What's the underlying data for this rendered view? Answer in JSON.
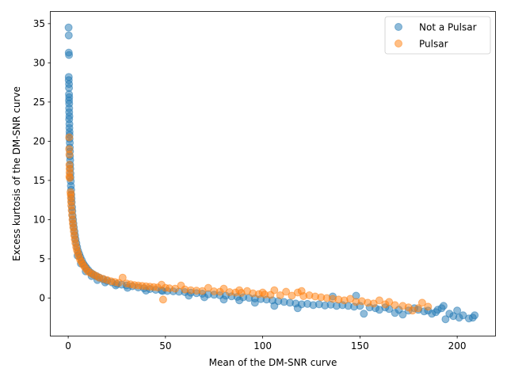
{
  "chart_data": {
    "type": "scatter",
    "title": "",
    "xlabel": "Mean of the DM-SNR curve",
    "ylabel": "Excess kurtosis of the DM-SNR curve",
    "xlim": [
      -9,
      219.5
    ],
    "ylim": [
      -4.8,
      36.5
    ],
    "xticks": [
      0,
      50,
      100,
      150,
      200
    ],
    "yticks": [
      0,
      5,
      10,
      15,
      20,
      25,
      30,
      35
    ],
    "grid": false,
    "legend_position": "top-right",
    "series": [
      {
        "name": "Not a Pulsar",
        "color": "#1f77b4",
        "alpha": 0.5,
        "points": [
          [
            0.2,
            34.5
          ],
          [
            0.3,
            33.5
          ],
          [
            0.3,
            31.3
          ],
          [
            0.4,
            31.0
          ],
          [
            0.3,
            28.2
          ],
          [
            0.3,
            27.8
          ],
          [
            0.4,
            27.3
          ],
          [
            0.4,
            26.8
          ],
          [
            0.4,
            26.0
          ],
          [
            0.5,
            25.6
          ],
          [
            0.4,
            25.2
          ],
          [
            0.5,
            24.8
          ],
          [
            0.5,
            24.2
          ],
          [
            0.5,
            23.7
          ],
          [
            0.6,
            23.2
          ],
          [
            0.5,
            22.8
          ],
          [
            0.6,
            22.2
          ],
          [
            0.6,
            21.7
          ],
          [
            0.7,
            21.2
          ],
          [
            0.7,
            20.8
          ],
          [
            0.7,
            20.3
          ],
          [
            0.8,
            19.8
          ],
          [
            0.8,
            19.2
          ],
          [
            0.9,
            18.7
          ],
          [
            0.9,
            18.1
          ],
          [
            1.0,
            17.6
          ],
          [
            1.0,
            17.0
          ],
          [
            1.1,
            16.5
          ],
          [
            1.2,
            15.9
          ],
          [
            1.2,
            15.4
          ],
          [
            1.3,
            14.9
          ],
          [
            1.4,
            14.3
          ],
          [
            1.5,
            13.8
          ],
          [
            1.6,
            13.2
          ],
          [
            1.7,
            12.7
          ],
          [
            1.8,
            12.2
          ],
          [
            2.0,
            11.6
          ],
          [
            2.1,
            11.1
          ],
          [
            2.3,
            10.5
          ],
          [
            2.5,
            10.0
          ],
          [
            2.7,
            9.5
          ],
          [
            2.9,
            9.0
          ],
          [
            3.2,
            8.5
          ],
          [
            3.5,
            8.0
          ],
          [
            3.8,
            7.5
          ],
          [
            4.2,
            7.0
          ],
          [
            4.6,
            6.5
          ],
          [
            5.1,
            6.0
          ],
          [
            5.7,
            5.6
          ],
          [
            6.3,
            5.2
          ],
          [
            7.0,
            4.8
          ],
          [
            7.8,
            4.4
          ],
          [
            8.6,
            4.1
          ],
          [
            9.5,
            3.8
          ],
          [
            10.5,
            3.5
          ],
          [
            11.8,
            3.2
          ],
          [
            13.0,
            3.0
          ],
          [
            14.5,
            2.8
          ],
          [
            16.0,
            2.6
          ],
          [
            18.0,
            2.4
          ],
          [
            20.0,
            2.2
          ],
          [
            22.5,
            2.0
          ],
          [
            25.0,
            1.8
          ],
          [
            27.5,
            1.7
          ],
          [
            30.0,
            1.6
          ],
          [
            33.0,
            1.5
          ],
          [
            36.0,
            1.35
          ],
          [
            39.0,
            1.25
          ],
          [
            42.0,
            1.15
          ],
          [
            45.0,
            1.05
          ],
          [
            48.0,
            0.98
          ],
          [
            51.0,
            0.9
          ],
          [
            54.0,
            0.85
          ],
          [
            57.0,
            0.8
          ],
          [
            60.0,
            0.75
          ],
          [
            63.0,
            0.68
          ],
          [
            66.0,
            0.62
          ],
          [
            69.0,
            0.55
          ],
          [
            72.0,
            0.48
          ],
          [
            75.0,
            0.42
          ],
          [
            78.0,
            0.35
          ],
          [
            81.0,
            0.3
          ],
          [
            84.0,
            0.22
          ],
          [
            87.0,
            0.15
          ],
          [
            90.0,
            0.1
          ],
          [
            93.0,
            0.02
          ],
          [
            96.0,
            -0.05
          ],
          [
            99.0,
            -0.12
          ],
          [
            102.0,
            -0.2
          ],
          [
            105.0,
            -0.3
          ],
          [
            108.0,
            -0.4
          ],
          [
            111.0,
            -0.5
          ],
          [
            114.0,
            -0.6
          ],
          [
            117.0,
            -0.7
          ],
          [
            120.0,
            -0.8
          ],
          [
            123.0,
            -0.75
          ],
          [
            126.0,
            -0.9
          ],
          [
            129.0,
            -0.8
          ],
          [
            132.0,
            -0.95
          ],
          [
            135.0,
            -0.85
          ],
          [
            138.0,
            -1.0
          ],
          [
            141.0,
            -0.9
          ],
          [
            144.0,
            -1.0
          ],
          [
            147.0,
            -1.1
          ],
          [
            150.0,
            -1.0
          ],
          [
            152.0,
            -2.0
          ],
          [
            155.0,
            -1.2
          ],
          [
            158.0,
            -1.3
          ],
          [
            160.0,
            -1.5
          ],
          [
            163.0,
            -1.2
          ],
          [
            165.0,
            -1.4
          ],
          [
            168.0,
            -1.9
          ],
          [
            170.0,
            -1.5
          ],
          [
            172.0,
            -2.1
          ],
          [
            175.0,
            -1.6
          ],
          [
            178.0,
            -1.3
          ],
          [
            180.0,
            -1.5
          ],
          [
            183.0,
            -1.7
          ],
          [
            185.0,
            -1.6
          ],
          [
            187.0,
            -2.0
          ],
          [
            189.0,
            -1.8
          ],
          [
            190.0,
            -1.5
          ],
          [
            192.0,
            -1.3
          ],
          [
            193.0,
            -1.0
          ],
          [
            194.0,
            -2.7
          ],
          [
            196.0,
            -2.0
          ],
          [
            198.0,
            -2.3
          ],
          [
            200.0,
            -1.6
          ],
          [
            201.0,
            -2.5
          ],
          [
            203.0,
            -2.2
          ],
          [
            206.0,
            -2.6
          ],
          [
            208.0,
            -2.5
          ],
          [
            209.0,
            -2.2
          ],
          [
            148.0,
            0.3
          ],
          [
            136.0,
            0.2
          ],
          [
            118.0,
            -1.3
          ],
          [
            106.0,
            -1.0
          ],
          [
            96.0,
            -0.6
          ],
          [
            88.0,
            -0.3
          ],
          [
            80.0,
            -0.2
          ],
          [
            70.0,
            0.1
          ],
          [
            62.0,
            0.3
          ],
          [
            48.5,
            0.9
          ],
          [
            40.0,
            0.95
          ],
          [
            30.5,
            1.3
          ],
          [
            24.5,
            1.6
          ],
          [
            19.0,
            2.0
          ],
          [
            15.0,
            2.3
          ],
          [
            12.0,
            2.8
          ],
          [
            9.0,
            3.4
          ],
          [
            6.5,
            4.4
          ],
          [
            4.8,
            5.4
          ]
        ]
      },
      {
        "name": "Pulsar",
        "color": "#ff7f0e",
        "alpha": 0.5,
        "points": [
          [
            0.5,
            20.5
          ],
          [
            0.5,
            19.0
          ],
          [
            0.6,
            18.3
          ],
          [
            0.6,
            17.0
          ],
          [
            0.7,
            16.5
          ],
          [
            0.7,
            16.0
          ],
          [
            0.6,
            15.5
          ],
          [
            0.8,
            15.3
          ],
          [
            1.2,
            13.5
          ],
          [
            1.3,
            13.2
          ],
          [
            1.4,
            12.8
          ],
          [
            1.5,
            12.3
          ],
          [
            1.6,
            11.8
          ],
          [
            1.8,
            11.2
          ],
          [
            2.0,
            10.6
          ],
          [
            2.2,
            10.0
          ],
          [
            2.4,
            9.5
          ],
          [
            2.6,
            9.0
          ],
          [
            2.9,
            8.5
          ],
          [
            3.1,
            8.0
          ],
          [
            3.4,
            7.5
          ],
          [
            3.7,
            7.0
          ],
          [
            4.1,
            6.5
          ],
          [
            4.5,
            6.1
          ],
          [
            5.0,
            5.7
          ],
          [
            5.5,
            5.3
          ],
          [
            6.1,
            4.9
          ],
          [
            6.8,
            4.6
          ],
          [
            7.5,
            4.3
          ],
          [
            8.3,
            4.0
          ],
          [
            9.2,
            3.7
          ],
          [
            10.2,
            3.4
          ],
          [
            11.5,
            3.2
          ],
          [
            13.0,
            3.0
          ],
          [
            14.5,
            2.8
          ],
          [
            16.0,
            2.6
          ],
          [
            18.0,
            2.45
          ],
          [
            20.0,
            2.3
          ],
          [
            22.0,
            2.15
          ],
          [
            24.0,
            2.05
          ],
          [
            26.0,
            1.95
          ],
          [
            28.0,
            2.6
          ],
          [
            30.0,
            1.85
          ],
          [
            32.0,
            1.75
          ],
          [
            34.0,
            1.65
          ],
          [
            36.0,
            1.6
          ],
          [
            38.0,
            1.55
          ],
          [
            40.0,
            1.5
          ],
          [
            42.0,
            1.45
          ],
          [
            44.0,
            1.4
          ],
          [
            46.0,
            1.35
          ],
          [
            48.0,
            1.7
          ],
          [
            48.8,
            -0.2
          ],
          [
            50.0,
            1.3
          ],
          [
            52.0,
            1.25
          ],
          [
            55.0,
            1.2
          ],
          [
            58.0,
            1.6
          ],
          [
            60.0,
            1.1
          ],
          [
            63.0,
            1.0
          ],
          [
            66.0,
            0.95
          ],
          [
            69.0,
            0.9
          ],
          [
            72.0,
            1.3
          ],
          [
            75.0,
            0.85
          ],
          [
            78.0,
            0.8
          ],
          [
            80.0,
            1.2
          ],
          [
            83.0,
            0.75
          ],
          [
            86.0,
            0.7
          ],
          [
            89.0,
            0.65
          ],
          [
            92.0,
            0.9
          ],
          [
            95.0,
            0.6
          ],
          [
            98.0,
            0.5
          ],
          [
            101.0,
            0.45
          ],
          [
            104.0,
            0.4
          ],
          [
            106.0,
            1.0
          ],
          [
            109.0,
            0.35
          ],
          [
            112.0,
            0.8
          ],
          [
            115.0,
            0.3
          ],
          [
            118.0,
            0.7
          ],
          [
            121.0,
            0.25
          ],
          [
            124.0,
            0.35
          ],
          [
            127.0,
            0.2
          ],
          [
            130.0,
            0.1
          ],
          [
            133.0,
            0.0
          ],
          [
            136.0,
            -0.1
          ],
          [
            139.0,
            -0.2
          ],
          [
            142.0,
            -0.3
          ],
          [
            145.0,
            -0.1
          ],
          [
            148.0,
            -0.5
          ],
          [
            151.0,
            -0.4
          ],
          [
            154.0,
            -0.6
          ],
          [
            157.0,
            -0.7
          ],
          [
            160.0,
            -0.3
          ],
          [
            163.0,
            -0.8
          ],
          [
            165.0,
            -0.5
          ],
          [
            168.0,
            -0.9
          ],
          [
            172.0,
            -1.0
          ],
          [
            175.0,
            -1.2
          ],
          [
            177.0,
            -1.6
          ],
          [
            180.0,
            -1.3
          ],
          [
            182.0,
            -0.6
          ],
          [
            185.0,
            -1.1
          ],
          [
            120.0,
            0.9
          ],
          [
            100.0,
            0.7
          ],
          [
            88.0,
            1.0
          ]
        ]
      }
    ]
  }
}
